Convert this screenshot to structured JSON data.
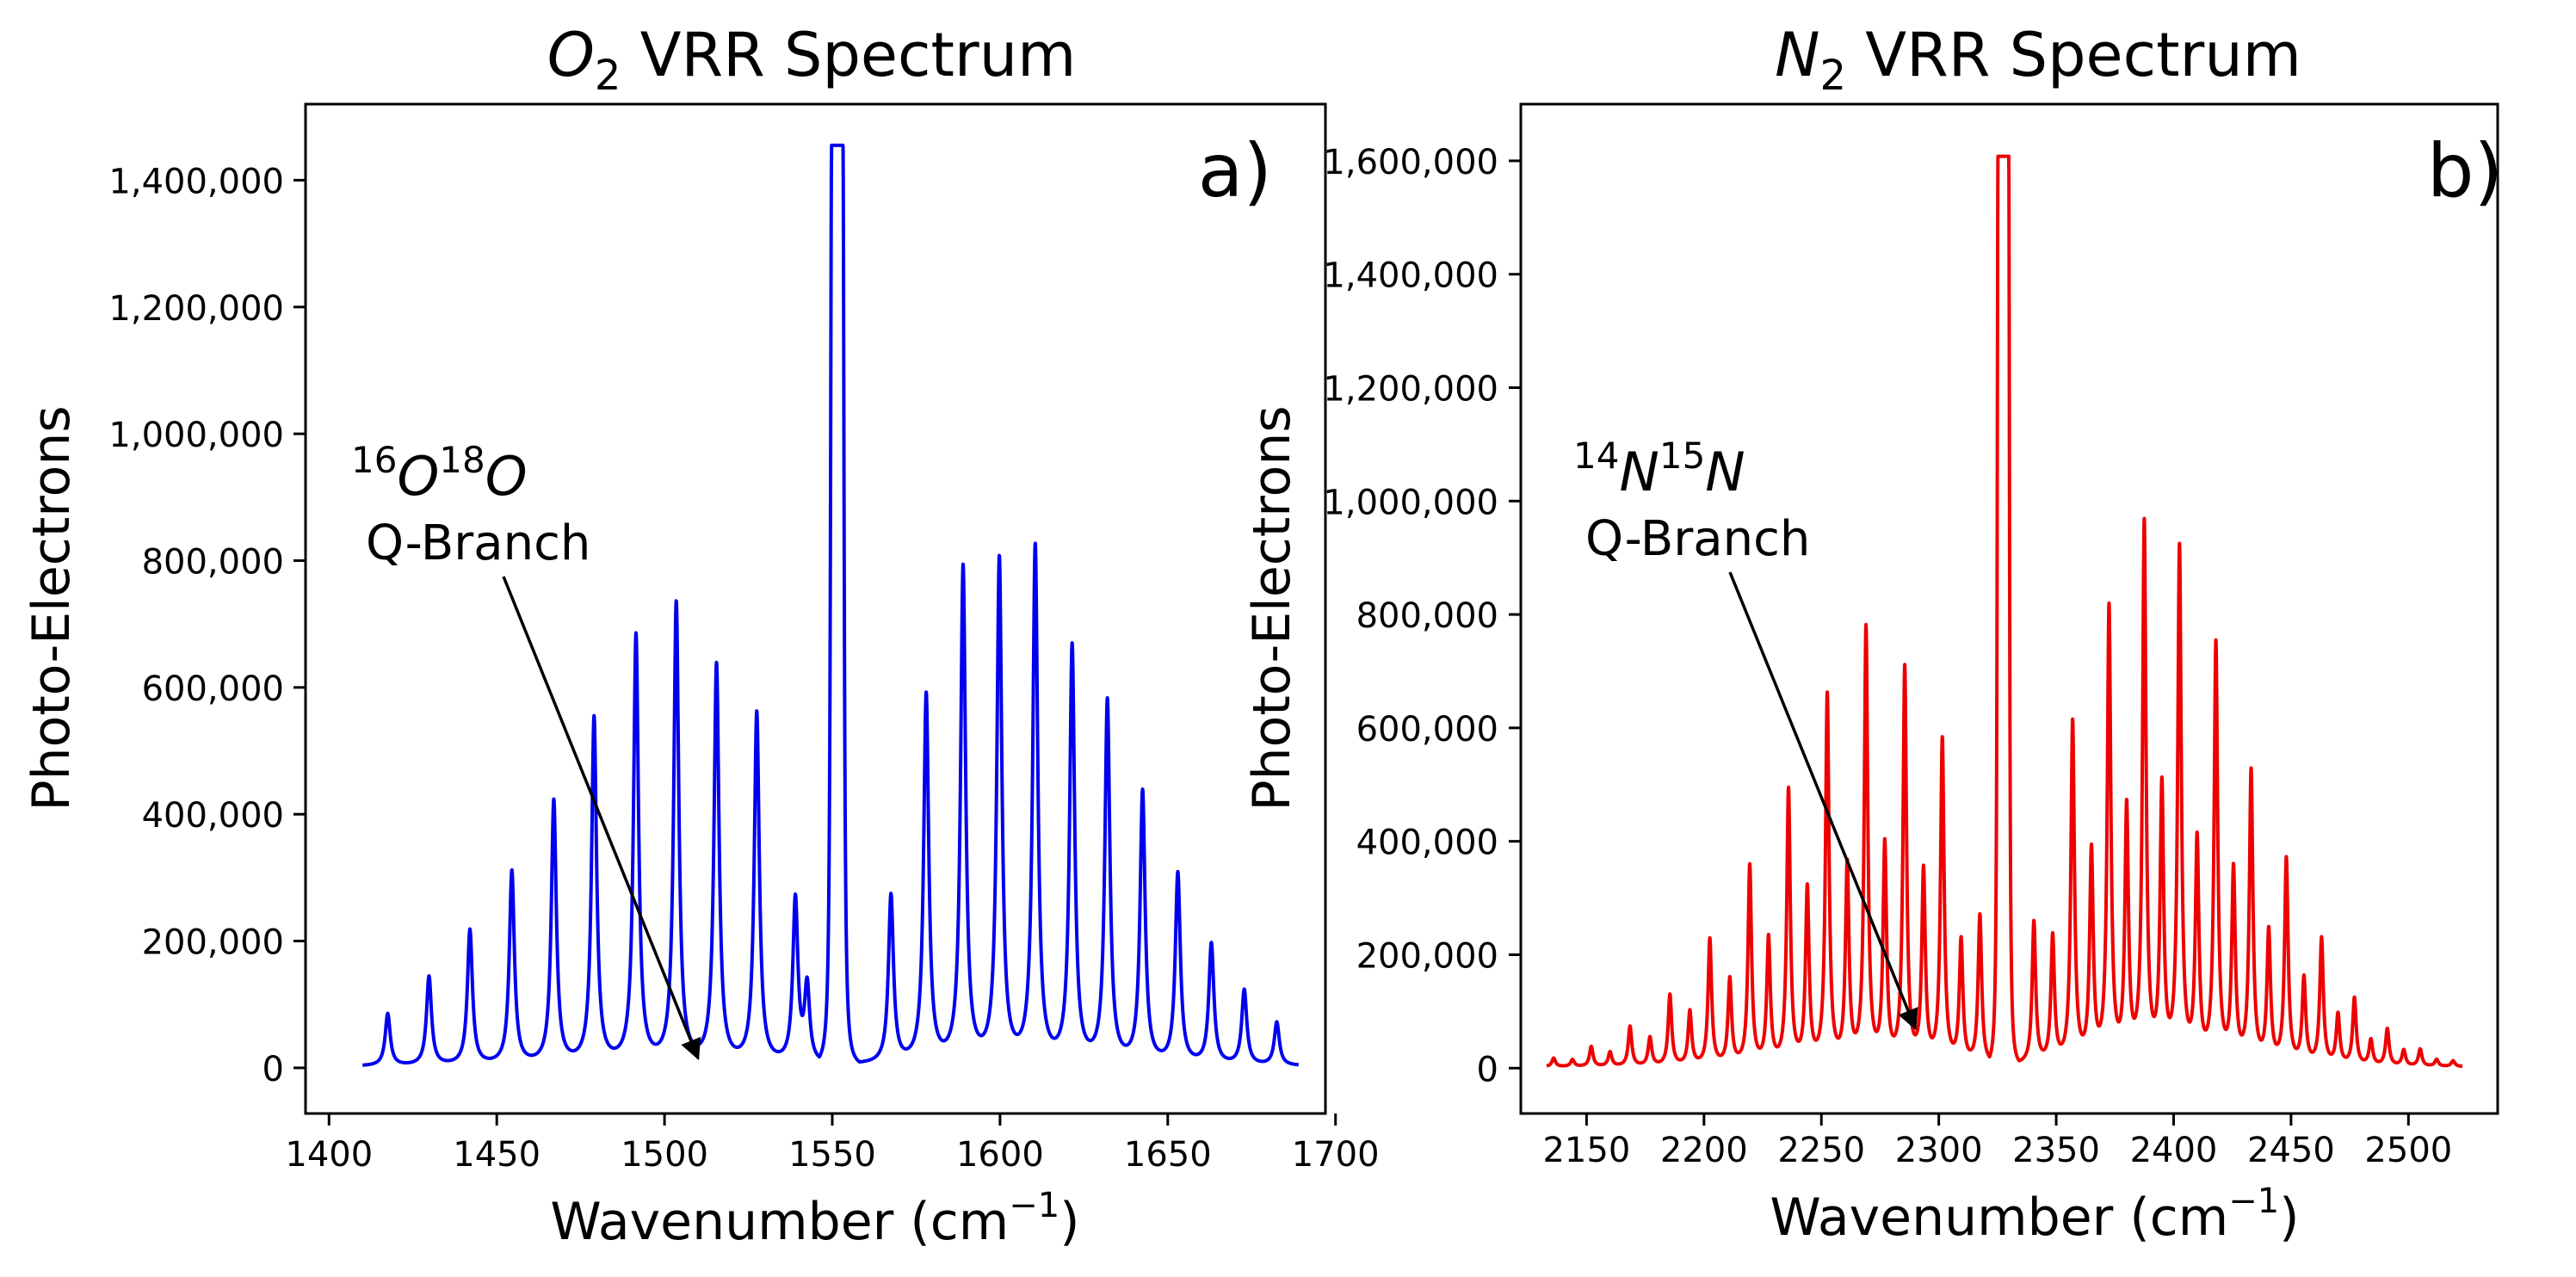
{
  "chart_data": [
    {
      "type": "line",
      "panel_label": "a)",
      "title": "O2 VRR Spectrum",
      "title_parts": {
        "base": "O",
        "sub": "2",
        "rest": " VRR Spectrum"
      },
      "xlabel": "Wavenumber (cm⁻¹)",
      "xlabel_parts": {
        "base": "Wavenumber (cm",
        "sup": "−1",
        "close": ")"
      },
      "ylabel": "Photo-Electrons",
      "xlim": [
        1393,
        1697
      ],
      "ylim": [
        -72000,
        1520000
      ],
      "xticks": [
        1400,
        1450,
        1500,
        1550,
        1600,
        1650,
        1700
      ],
      "xtick_labels": [
        "1400",
        "1450",
        "1500",
        "1550",
        "1600",
        "1650",
        "1700"
      ],
      "yticks": [
        0,
        200000,
        400000,
        600000,
        800000,
        1000000,
        1200000,
        1400000
      ],
      "ytick_labels": [
        "0",
        "200,000",
        "400,000",
        "600,000",
        "800,000",
        "1,000,000",
        "1,200,000",
        "1,400,000"
      ],
      "color": "#0000ee",
      "x_range": [
        1410,
        1689
      ],
      "baseline": 2000,
      "width": 0.9,
      "clip": 1455000,
      "q_branch": {
        "center": 1551.5,
        "half_width": 1.7
      },
      "peaks": [
        {
          "x": 1417.5,
          "y": 82000
        },
        {
          "x": 1429.8,
          "y": 140000
        },
        {
          "x": 1442.0,
          "y": 213000
        },
        {
          "x": 1454.5,
          "y": 305000
        },
        {
          "x": 1467.0,
          "y": 415000
        },
        {
          "x": 1479.0,
          "y": 545000
        },
        {
          "x": 1491.5,
          "y": 675000
        },
        {
          "x": 1503.5,
          "y": 725000
        },
        {
          "x": 1515.5,
          "y": 628000
        },
        {
          "x": 1527.5,
          "y": 553000
        },
        {
          "x": 1539.0,
          "y": 258000
        },
        {
          "x": 1542.5,
          "y": 120000
        },
        {
          "x": 1567.5,
          "y": 265000
        },
        {
          "x": 1578.0,
          "y": 580000
        },
        {
          "x": 1589.0,
          "y": 780000
        },
        {
          "x": 1599.8,
          "y": 792000
        },
        {
          "x": 1610.5,
          "y": 812000
        },
        {
          "x": 1621.5,
          "y": 655000
        },
        {
          "x": 1632.0,
          "y": 570000
        },
        {
          "x": 1642.5,
          "y": 428000
        },
        {
          "x": 1653.0,
          "y": 300000
        },
        {
          "x": 1663.0,
          "y": 190000
        },
        {
          "x": 1672.8,
          "y": 118000
        },
        {
          "x": 1682.5,
          "y": 68000
        }
      ],
      "annotation": {
        "iso_a": "16",
        "el_a": "O",
        "iso_b": "18",
        "el_b": "O",
        "line2": "Q-Branch",
        "arrow_to_x": 1510,
        "arrow_to_y": 15000
      }
    },
    {
      "type": "line",
      "panel_label": "b)",
      "title": "N2 VRR Spectrum",
      "title_parts": {
        "base": "N",
        "sub": "2",
        "rest": " VRR Spectrum"
      },
      "xlabel": "Wavenumber (cm⁻¹)",
      "xlabel_parts": {
        "base": "Wavenumber (cm",
        "sup": "−1",
        "close": ")"
      },
      "ylabel": "Photo-Electrons",
      "xlim": [
        2122,
        2538
      ],
      "ylim": [
        -80000,
        1700000
      ],
      "xticks": [
        2150,
        2200,
        2250,
        2300,
        2350,
        2400,
        2450,
        2500
      ],
      "xtick_labels": [
        "2150",
        "2200",
        "2250",
        "2300",
        "2350",
        "2400",
        "2450",
        "2500"
      ],
      "yticks": [
        0,
        200000,
        400000,
        600000,
        800000,
        1000000,
        1200000,
        1400000,
        1600000
      ],
      "ytick_labels": [
        "0",
        "200,000",
        "400,000",
        "600,000",
        "800,000",
        "1,000,000",
        "1,200,000",
        "1,400,000",
        "1,600,000"
      ],
      "color": "#ee0000",
      "x_range": [
        2133,
        2523
      ],
      "baseline": 2000,
      "width": 0.9,
      "clip": 1608000,
      "q_branch": {
        "center": 2327.5,
        "half_width": 2.3
      },
      "peaks": [
        {
          "x": 2136.0,
          "y": 15000
        },
        {
          "x": 2144.0,
          "y": 12000
        },
        {
          "x": 2152.0,
          "y": 35000
        },
        {
          "x": 2160.0,
          "y": 25000
        },
        {
          "x": 2168.5,
          "y": 70000
        },
        {
          "x": 2177.0,
          "y": 50000
        },
        {
          "x": 2185.5,
          "y": 125000
        },
        {
          "x": 2194.0,
          "y": 95000
        },
        {
          "x": 2202.5,
          "y": 222000
        },
        {
          "x": 2211.0,
          "y": 150000
        },
        {
          "x": 2219.5,
          "y": 350000
        },
        {
          "x": 2227.5,
          "y": 220000
        },
        {
          "x": 2236.0,
          "y": 482000
        },
        {
          "x": 2244.0,
          "y": 305000
        },
        {
          "x": 2252.5,
          "y": 648000
        },
        {
          "x": 2261.0,
          "y": 345000
        },
        {
          "x": 2269.0,
          "y": 765000
        },
        {
          "x": 2277.0,
          "y": 380000
        },
        {
          "x": 2285.5,
          "y": 695000
        },
        {
          "x": 2293.5,
          "y": 335000
        },
        {
          "x": 2301.5,
          "y": 570000
        },
        {
          "x": 2309.5,
          "y": 215000
        },
        {
          "x": 2317.5,
          "y": 262000
        },
        {
          "x": 2340.5,
          "y": 250000
        },
        {
          "x": 2348.5,
          "y": 222000
        },
        {
          "x": 2357.0,
          "y": 600000
        },
        {
          "x": 2365.0,
          "y": 368000
        },
        {
          "x": 2372.5,
          "y": 798000
        },
        {
          "x": 2380.0,
          "y": 440000
        },
        {
          "x": 2387.5,
          "y": 945000
        },
        {
          "x": 2395.0,
          "y": 478000
        },
        {
          "x": 2402.5,
          "y": 902000
        },
        {
          "x": 2410.0,
          "y": 385000
        },
        {
          "x": 2418.0,
          "y": 735000
        },
        {
          "x": 2425.5,
          "y": 335000
        },
        {
          "x": 2433.0,
          "y": 512000
        },
        {
          "x": 2440.5,
          "y": 230000
        },
        {
          "x": 2448.0,
          "y": 360000
        },
        {
          "x": 2455.5,
          "y": 150000
        },
        {
          "x": 2463.0,
          "y": 222000
        },
        {
          "x": 2470.0,
          "y": 88000
        },
        {
          "x": 2477.0,
          "y": 118000
        },
        {
          "x": 2484.0,
          "y": 45000
        },
        {
          "x": 2491.0,
          "y": 65000
        },
        {
          "x": 2498.0,
          "y": 28000
        },
        {
          "x": 2505.0,
          "y": 30000
        },
        {
          "x": 2512.0,
          "y": 12000
        },
        {
          "x": 2519.0,
          "y": 10000
        }
      ],
      "annotation": {
        "iso_a": "14",
        "el_a": "N",
        "iso_b": "15",
        "el_b": "N",
        "line2": "Q-Branch",
        "arrow_to_x": 2290,
        "arrow_to_y": 70000
      }
    }
  ]
}
